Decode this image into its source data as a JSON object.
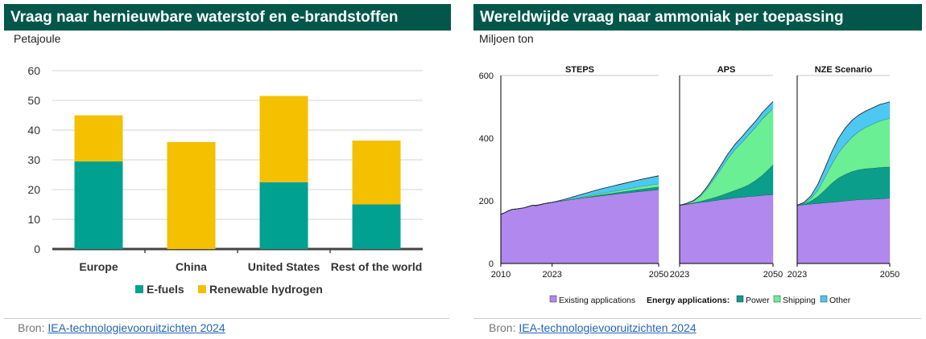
{
  "left_panel": {
    "title": "Vraag naar hernieuwbare waterstof en e-brandstoffen",
    "unit": "Petajoule",
    "source_prefix": "Bron:",
    "source_link": "IEA-technologievooruitzichten 2024"
  },
  "right_panel": {
    "title": "Wereldwijde vraag naar ammoniak per toepassing",
    "unit": "Miljoen ton",
    "source_prefix": "Bron:",
    "source_link": "IEA-technologievooruitzichten 2024"
  },
  "colors": {
    "header": "#02574a",
    "efuels": "#00a191",
    "hydrogen": "#f4c000",
    "existing": "#b088ee",
    "power": "#0b9e8a",
    "shipping": "#6bef95",
    "other": "#4cc8f2"
  },
  "chart_data": [
    {
      "type": "bar",
      "stacked": true,
      "categories": [
        "Europe",
        "China",
        "United States",
        "Rest of the world"
      ],
      "series": [
        {
          "name": "E-fuels",
          "values": [
            29.5,
            0,
            22.5,
            15
          ]
        },
        {
          "name": "Renewable hydrogen",
          "values": [
            15.5,
            36,
            29,
            21.5
          ]
        }
      ],
      "ylim": [
        0,
        60
      ],
      "yticks": [
        0,
        10,
        20,
        30,
        40,
        50,
        60
      ],
      "grid": true,
      "legend": "bottom"
    },
    {
      "type": "area",
      "stacked": true,
      "panels": [
        {
          "title": "STEPS",
          "xticks": [
            "2010",
            "2023",
            "2050"
          ],
          "x": [
            2010,
            2011,
            2012,
            2013,
            2014,
            2015,
            2016,
            2017,
            2018,
            2019,
            2020,
            2021,
            2022,
            2023,
            2026,
            2030,
            2035,
            2040,
            2045,
            2050
          ],
          "series": [
            {
              "name": "Existing applications",
              "values": [
                157,
                162,
                169,
                173,
                174,
                176,
                178,
                182,
                186,
                185,
                188,
                191,
                193,
                195,
                201,
                208,
                216,
                223,
                230,
                236
              ]
            },
            {
              "name": "Power",
              "values": [
                0,
                0,
                0,
                0,
                0,
                0,
                0,
                0,
                0,
                0,
                0,
                0,
                0,
                0,
                0,
                1,
                3,
                5,
                7,
                9
              ]
            },
            {
              "name": "Shipping",
              "values": [
                0,
                0,
                0,
                0,
                0,
                0,
                0,
                0,
                0,
                0,
                0,
                0,
                0,
                0,
                1,
                2,
                4,
                6,
                8,
                10
              ]
            },
            {
              "name": "Other",
              "values": [
                0,
                0,
                0,
                0,
                0,
                0,
                0,
                0,
                0,
                0,
                0,
                0,
                0,
                0,
                2,
                8,
                14,
                18,
                22,
                25
              ]
            }
          ]
        },
        {
          "title": "APS",
          "xticks": [
            "2023",
            "2050"
          ],
          "x": [
            2023,
            2025,
            2027,
            2029,
            2031,
            2033,
            2035,
            2037,
            2039,
            2041,
            2043,
            2045,
            2047,
            2050
          ],
          "series": [
            {
              "name": "Existing applications",
              "values": [
                186,
                189,
                192,
                195,
                198,
                201,
                204,
                207,
                210,
                212,
                214,
                216,
                218,
                220
              ]
            },
            {
              "name": "Power",
              "values": [
                0,
                1,
                2,
                4,
                7,
                10,
                14,
                19,
                24,
                30,
                38,
                50,
                65,
                95
              ]
            },
            {
              "name": "Shipping",
              "values": [
                0,
                1,
                5,
                15,
                35,
                60,
                85,
                110,
                130,
                145,
                160,
                170,
                180,
                180
              ]
            },
            {
              "name": "Other",
              "values": [
                0,
                1,
                2,
                4,
                6,
                9,
                12,
                14,
                16,
                17,
                18,
                19,
                20,
                22
              ]
            }
          ]
        },
        {
          "title": "NZE Scenario",
          "xticks": [
            "2023",
            "2050"
          ],
          "x": [
            2023,
            2025,
            2027,
            2029,
            2031,
            2033,
            2035,
            2037,
            2039,
            2041,
            2043,
            2045,
            2047,
            2050
          ],
          "series": [
            {
              "name": "Existing applications",
              "values": [
                186,
                188,
                190,
                192,
                194,
                196,
                198,
                200,
                202,
                204,
                205,
                206,
                207,
                209
              ]
            },
            {
              "name": "Power",
              "values": [
                0,
                3,
                10,
                22,
                40,
                60,
                75,
                85,
                92,
                96,
                98,
                99,
                100,
                100
              ]
            },
            {
              "name": "Shipping",
              "values": [
                0,
                2,
                8,
                20,
                40,
                60,
                80,
                95,
                110,
                122,
                132,
                140,
                148,
                155
              ]
            },
            {
              "name": "Other",
              "values": [
                0,
                2,
                8,
                18,
                28,
                38,
                46,
                52,
                53,
                52,
                52,
                52,
                52,
                52
              ]
            }
          ]
        }
      ],
      "ylim": [
        0,
        600
      ],
      "yticks": [
        0,
        200,
        400,
        600
      ],
      "legend": {
        "items": [
          "Existing applications",
          "Power",
          "Shipping",
          "Other"
        ],
        "group_label": "Energy applications:"
      }
    }
  ]
}
